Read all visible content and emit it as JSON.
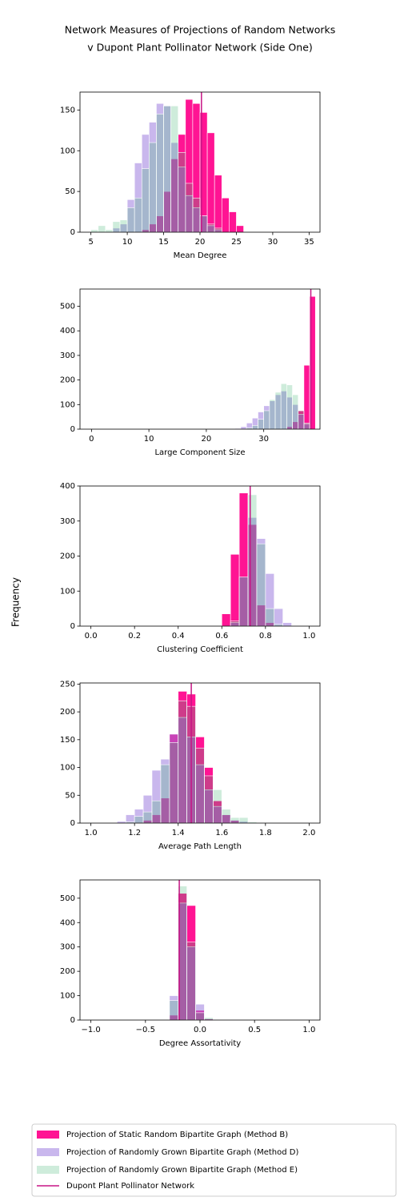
{
  "title": [
    "Network Measures of Projections of Random Networks",
    "v Dupont Plant Pollinator Network (Side One)"
  ],
  "ylabel": "Frequency",
  "legend": {
    "series": [
      {
        "name": "Projection of Static Random Bipartite Graph (Method B)",
        "color": "#ff1493",
        "opacity": 1
      },
      {
        "name": "Projection of Randomly Grown Bipartite Graph (Method D)",
        "color": "#9370db",
        "opacity": 0.5
      },
      {
        "name": "Projection of Randomly Grown Bipartite Graph (Method E)",
        "color": "#3cb371",
        "opacity": 0.25
      }
    ],
    "reference": {
      "name": "Dupont Plant Pollinator Network",
      "color": "#c71585"
    }
  },
  "chart_data": [
    {
      "type": "histogram",
      "xlabel": "Mean Degree",
      "bins": [
        5,
        6,
        7,
        8,
        9,
        10,
        11,
        12,
        13,
        14,
        15,
        16,
        17,
        18,
        19,
        20,
        21,
        22,
        23,
        24,
        25,
        26,
        27,
        28,
        29,
        30,
        31,
        32,
        33,
        34,
        35
      ],
      "series": [
        {
          "values": [
            0,
            0,
            0,
            0,
            0,
            0,
            0,
            3,
            10,
            20,
            50,
            90,
            120,
            163,
            158,
            147,
            122,
            70,
            42,
            25,
            8,
            0,
            0,
            0,
            0,
            0,
            0,
            0,
            0,
            0
          ]
        },
        {
          "values": [
            0,
            0,
            0,
            5,
            10,
            40,
            85,
            120,
            135,
            158,
            155,
            110,
            80,
            45,
            30,
            20,
            8,
            3,
            0,
            0,
            0,
            0,
            0,
            0,
            0,
            0,
            0,
            0,
            0,
            0
          ]
        },
        {
          "values": [
            3,
            8,
            3,
            13,
            15,
            30,
            42,
            78,
            110,
            145,
            155,
            155,
            98,
            60,
            42,
            20,
            10,
            5,
            0,
            0,
            0,
            0,
            0,
            0,
            0,
            0,
            0,
            0,
            0,
            0
          ]
        }
      ],
      "reference": 20.2,
      "xlim": [
        3.5,
        36.5
      ],
      "xticks": [
        5,
        10,
        15,
        20,
        25,
        30,
        35
      ],
      "ylim": [
        0,
        172
      ],
      "yticks": [
        0,
        50,
        100,
        150
      ]
    },
    {
      "type": "histogram",
      "xlabel": "Large Component Size",
      "bins": [
        0,
        1,
        2,
        3,
        4,
        5,
        6,
        7,
        8,
        9,
        10,
        11,
        12,
        13,
        14,
        15,
        16,
        17,
        18,
        19,
        20,
        21,
        22,
        23,
        24,
        25,
        26,
        27,
        28,
        29,
        30,
        31,
        32,
        33,
        34,
        35,
        36,
        37,
        38,
        39
      ],
      "series": [
        {
          "values": [
            0,
            0,
            0,
            0,
            0,
            0,
            0,
            0,
            0,
            0,
            0,
            0,
            0,
            0,
            0,
            0,
            0,
            0,
            0,
            0,
            0,
            0,
            0,
            0,
            0,
            0,
            0,
            0,
            0,
            0,
            0,
            0,
            0,
            0,
            10,
            30,
            75,
            260,
            540
          ]
        },
        {
          "values": [
            0,
            0,
            0,
            0,
            0,
            0,
            0,
            0,
            0,
            0,
            0,
            0,
            0,
            0,
            0,
            0,
            0,
            0,
            0,
            0,
            0,
            0,
            0,
            0,
            0,
            3,
            10,
            25,
            45,
            70,
            95,
            115,
            140,
            155,
            130,
            100,
            60,
            20,
            0
          ]
        },
        {
          "values": [
            0,
            0,
            0,
            0,
            0,
            0,
            0,
            0,
            0,
            0,
            0,
            0,
            0,
            0,
            0,
            0,
            0,
            0,
            0,
            0,
            0,
            0,
            0,
            0,
            0,
            0,
            0,
            5,
            15,
            40,
            75,
            120,
            150,
            185,
            180,
            140,
            75,
            25,
            0
          ]
        }
      ],
      "reference": 38.2,
      "xlim": [
        -2,
        39.8
      ],
      "xticks": [
        0,
        10,
        20,
        30
      ],
      "ylim": [
        0,
        570
      ],
      "yticks": [
        0,
        100,
        200,
        300,
        400,
        500
      ]
    },
    {
      "type": "histogram",
      "xlabel": "Clustering Coefficient",
      "bins": [
        0,
        0.04,
        0.08,
        0.12,
        0.16,
        0.2,
        0.24,
        0.28,
        0.32,
        0.36,
        0.4,
        0.44,
        0.48,
        0.52,
        0.56,
        0.6,
        0.64,
        0.68,
        0.72,
        0.76,
        0.8,
        0.84,
        0.88,
        0.92,
        0.96,
        1
      ],
      "series": [
        {
          "values": [
            0,
            0,
            0,
            0,
            0,
            0,
            0,
            0,
            0,
            0,
            0,
            0,
            0,
            0,
            0,
            35,
            205,
            380,
            290,
            60,
            10,
            0,
            0,
            0,
            0
          ]
        },
        {
          "values": [
            0,
            0,
            0,
            0,
            0,
            0,
            0,
            0,
            0,
            0,
            0,
            0,
            0,
            0,
            0,
            0,
            10,
            140,
            310,
            250,
            150,
            50,
            10,
            0,
            0
          ]
        },
        {
          "values": [
            0,
            0,
            0,
            0,
            0,
            0,
            0,
            0,
            0,
            0,
            0,
            0,
            0,
            0,
            0,
            0,
            15,
            140,
            375,
            235,
            50,
            5,
            0,
            0,
            0
          ]
        }
      ],
      "reference": 0.73,
      "xlim": [
        -0.05,
        1.05
      ],
      "xticks": [
        {
          "value": 0,
          "label": "0.0"
        },
        0.2,
        0.4,
        0.6,
        0.8,
        {
          "value": 1,
          "label": "1.0"
        }
      ],
      "ylim": [
        0,
        400
      ],
      "yticks": [
        0,
        100,
        200,
        300,
        400
      ]
    },
    {
      "type": "histogram",
      "xlabel": "Average Path Length",
      "bins": [
        1,
        1.04,
        1.08,
        1.12,
        1.16,
        1.2,
        1.24,
        1.28,
        1.32,
        1.36,
        1.4,
        1.44,
        1.48,
        1.52,
        1.56,
        1.6,
        1.64,
        1.68,
        1.72,
        1.76,
        1.8,
        1.84,
        1.88,
        1.92,
        1.96,
        2
      ],
      "series": [
        {
          "values": [
            0,
            0,
            0,
            0,
            0,
            0,
            5,
            15,
            45,
            160,
            237,
            232,
            155,
            100,
            40,
            15,
            5,
            0,
            0,
            0,
            0,
            0,
            0,
            0,
            0
          ]
        },
        {
          "values": [
            0,
            0,
            0,
            3,
            15,
            25,
            50,
            95,
            115,
            160,
            190,
            155,
            105,
            60,
            30,
            15,
            5,
            3,
            0,
            0,
            0,
            0,
            0,
            0,
            0
          ]
        },
        {
          "values": [
            0,
            0,
            0,
            0,
            2,
            12,
            20,
            40,
            105,
            145,
            220,
            210,
            135,
            85,
            60,
            25,
            10,
            10,
            2,
            0,
            0,
            0,
            0,
            0,
            0
          ]
        }
      ],
      "reference": 1.46,
      "xlim": [
        0.95,
        2.05
      ],
      "xticks": [
        {
          "value": 1,
          "label": "1.0"
        },
        1.2,
        1.4,
        1.6,
        1.8,
        {
          "value": 2,
          "label": "2.0"
        }
      ],
      "ylim": [
        0,
        252
      ],
      "yticks": [
        0,
        50,
        100,
        150,
        200,
        250
      ]
    },
    {
      "type": "histogram",
      "xlabel": "Degree Assortativity",
      "bins": [
        -1,
        -0.92,
        -0.84,
        -0.76,
        -0.68,
        -0.6,
        -0.52,
        -0.44,
        -0.36,
        -0.28,
        -0.2,
        -0.12,
        -0.04,
        0.04,
        0.12,
        0.2,
        0.28,
        0.36,
        0.44,
        0.52,
        0.6,
        0.68,
        0.76,
        0.84,
        0.92,
        1
      ],
      "series": [
        {
          "values": [
            0,
            0,
            0,
            0,
            0,
            0,
            0,
            0,
            0,
            20,
            520,
            470,
            40,
            5,
            0,
            0,
            0,
            0,
            0,
            0,
            0,
            0,
            0,
            0,
            0
          ]
        },
        {
          "values": [
            0,
            0,
            0,
            0,
            0,
            0,
            0,
            0,
            0,
            100,
            480,
            300,
            65,
            5,
            0,
            0,
            0,
            0,
            0,
            0,
            0,
            0,
            0,
            0,
            0
          ]
        },
        {
          "values": [
            0,
            0,
            0,
            0,
            0,
            0,
            0,
            0,
            0,
            80,
            550,
            320,
            30,
            10,
            0,
            0,
            0,
            0,
            0,
            0,
            0,
            0,
            0,
            0,
            0
          ]
        }
      ],
      "reference": -0.19,
      "xlim": [
        -1.1,
        1.1
      ],
      "xticks": [
        {
          "value": -1,
          "label": "−1.0"
        },
        {
          "value": -0.5,
          "label": "−0.5"
        },
        {
          "value": 0,
          "label": "0.0"
        },
        0.5,
        {
          "value": 1,
          "label": "1.0"
        }
      ],
      "ylim": [
        0,
        575
      ],
      "yticks": [
        0,
        100,
        200,
        300,
        400,
        500
      ]
    }
  ]
}
